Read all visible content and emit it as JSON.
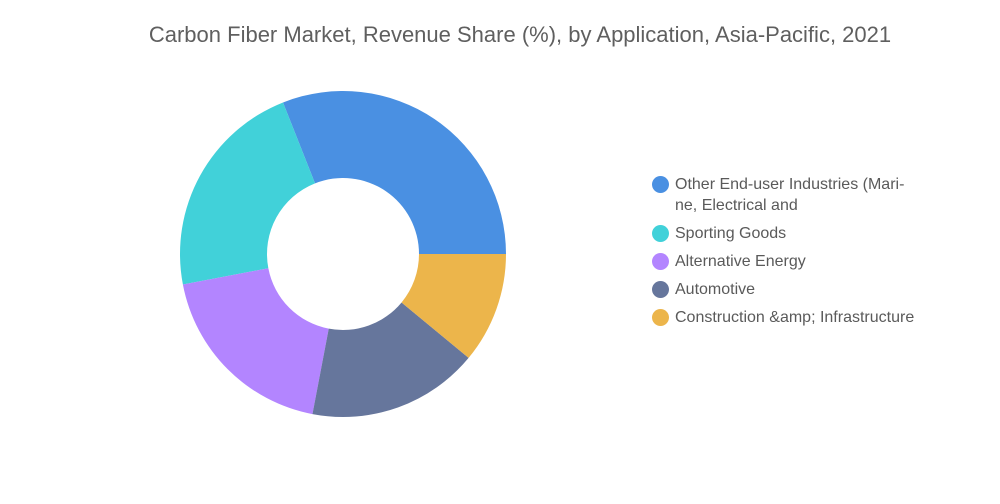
{
  "chart_data": {
    "type": "pie",
    "title": "Carbon Fiber Market, Revenue Share (%), by Application, Asia-Pacific, 2021",
    "categories": [
      "Other End-user Industries (Mari- ne, Electrical and",
      "Sporting Goods",
      "Alternative Energy",
      "Automotive",
      "Construction &amp; Infrastructure"
    ],
    "values": [
      31,
      22,
      19,
      17,
      11
    ],
    "colors": [
      "#4a90e2",
      "#41d1d9",
      "#b385ff",
      "#66769c",
      "#ecb54b"
    ],
    "donut": true,
    "legend_position": "right"
  }
}
